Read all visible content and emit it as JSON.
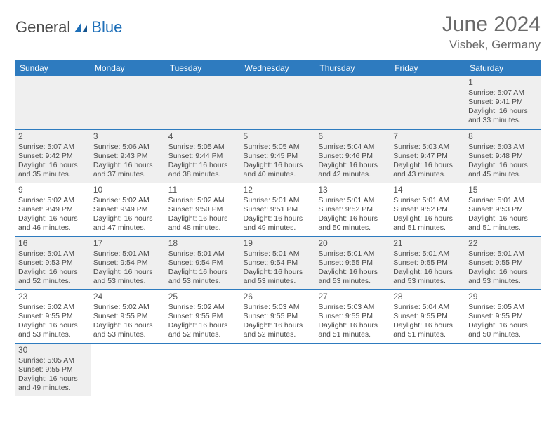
{
  "brand": {
    "general": "General",
    "blue": "Blue"
  },
  "title": "June 2024",
  "location": "Visbek, Germany",
  "colors": {
    "header_bg": "#2e7bbf",
    "header_fg": "#ffffff",
    "shaded_bg": "#efefef",
    "text": "#4a4a4a",
    "accent": "#1e6fb8"
  },
  "typography": {
    "title_fontsize": 30,
    "location_fontsize": 17,
    "header_fontsize": 12,
    "cell_fontsize": 10.5
  },
  "day_headers": [
    "Sunday",
    "Monday",
    "Tuesday",
    "Wednesday",
    "Thursday",
    "Friday",
    "Saturday"
  ],
  "weeks": [
    [
      null,
      null,
      null,
      null,
      null,
      null,
      {
        "n": "1",
        "rise": "5:07 AM",
        "set": "9:41 PM",
        "dlh": "16",
        "dlm": "33"
      }
    ],
    [
      {
        "n": "2",
        "rise": "5:07 AM",
        "set": "9:42 PM",
        "dlh": "16",
        "dlm": "35"
      },
      {
        "n": "3",
        "rise": "5:06 AM",
        "set": "9:43 PM",
        "dlh": "16",
        "dlm": "37"
      },
      {
        "n": "4",
        "rise": "5:05 AM",
        "set": "9:44 PM",
        "dlh": "16",
        "dlm": "38"
      },
      {
        "n": "5",
        "rise": "5:05 AM",
        "set": "9:45 PM",
        "dlh": "16",
        "dlm": "40"
      },
      {
        "n": "6",
        "rise": "5:04 AM",
        "set": "9:46 PM",
        "dlh": "16",
        "dlm": "42"
      },
      {
        "n": "7",
        "rise": "5:03 AM",
        "set": "9:47 PM",
        "dlh": "16",
        "dlm": "43"
      },
      {
        "n": "8",
        "rise": "5:03 AM",
        "set": "9:48 PM",
        "dlh": "16",
        "dlm": "45"
      }
    ],
    [
      {
        "n": "9",
        "rise": "5:02 AM",
        "set": "9:49 PM",
        "dlh": "16",
        "dlm": "46"
      },
      {
        "n": "10",
        "rise": "5:02 AM",
        "set": "9:49 PM",
        "dlh": "16",
        "dlm": "47"
      },
      {
        "n": "11",
        "rise": "5:02 AM",
        "set": "9:50 PM",
        "dlh": "16",
        "dlm": "48"
      },
      {
        "n": "12",
        "rise": "5:01 AM",
        "set": "9:51 PM",
        "dlh": "16",
        "dlm": "49"
      },
      {
        "n": "13",
        "rise": "5:01 AM",
        "set": "9:52 PM",
        "dlh": "16",
        "dlm": "50"
      },
      {
        "n": "14",
        "rise": "5:01 AM",
        "set": "9:52 PM",
        "dlh": "16",
        "dlm": "51"
      },
      {
        "n": "15",
        "rise": "5:01 AM",
        "set": "9:53 PM",
        "dlh": "16",
        "dlm": "51"
      }
    ],
    [
      {
        "n": "16",
        "rise": "5:01 AM",
        "set": "9:53 PM",
        "dlh": "16",
        "dlm": "52"
      },
      {
        "n": "17",
        "rise": "5:01 AM",
        "set": "9:54 PM",
        "dlh": "16",
        "dlm": "53"
      },
      {
        "n": "18",
        "rise": "5:01 AM",
        "set": "9:54 PM",
        "dlh": "16",
        "dlm": "53"
      },
      {
        "n": "19",
        "rise": "5:01 AM",
        "set": "9:54 PM",
        "dlh": "16",
        "dlm": "53"
      },
      {
        "n": "20",
        "rise": "5:01 AM",
        "set": "9:55 PM",
        "dlh": "16",
        "dlm": "53"
      },
      {
        "n": "21",
        "rise": "5:01 AM",
        "set": "9:55 PM",
        "dlh": "16",
        "dlm": "53"
      },
      {
        "n": "22",
        "rise": "5:01 AM",
        "set": "9:55 PM",
        "dlh": "16",
        "dlm": "53"
      }
    ],
    [
      {
        "n": "23",
        "rise": "5:02 AM",
        "set": "9:55 PM",
        "dlh": "16",
        "dlm": "53"
      },
      {
        "n": "24",
        "rise": "5:02 AM",
        "set": "9:55 PM",
        "dlh": "16",
        "dlm": "53"
      },
      {
        "n": "25",
        "rise": "5:02 AM",
        "set": "9:55 PM",
        "dlh": "16",
        "dlm": "52"
      },
      {
        "n": "26",
        "rise": "5:03 AM",
        "set": "9:55 PM",
        "dlh": "16",
        "dlm": "52"
      },
      {
        "n": "27",
        "rise": "5:03 AM",
        "set": "9:55 PM",
        "dlh": "16",
        "dlm": "51"
      },
      {
        "n": "28",
        "rise": "5:04 AM",
        "set": "9:55 PM",
        "dlh": "16",
        "dlm": "51"
      },
      {
        "n": "29",
        "rise": "5:05 AM",
        "set": "9:55 PM",
        "dlh": "16",
        "dlm": "50"
      }
    ],
    [
      {
        "n": "30",
        "rise": "5:05 AM",
        "set": "9:55 PM",
        "dlh": "16",
        "dlm": "49"
      },
      null,
      null,
      null,
      null,
      null,
      null
    ]
  ],
  "labels": {
    "sunrise": "Sunrise:",
    "sunset": "Sunset:",
    "daylight": "Daylight:",
    "hours": "hours",
    "and": "and",
    "minutes": "minutes."
  }
}
